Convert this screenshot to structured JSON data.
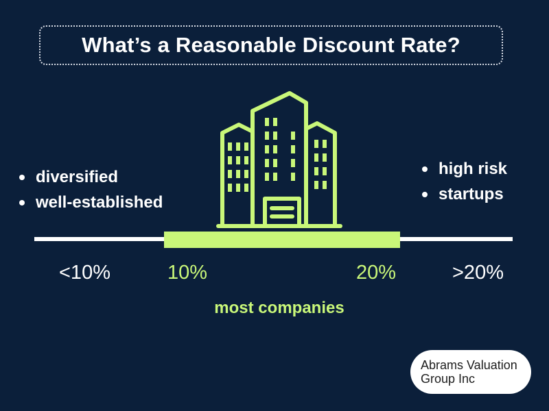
{
  "title": "What’s a Reasonable Discount Rate?",
  "left_bullets": [
    "diversified",
    "well-established"
  ],
  "right_bullets": [
    "high risk",
    "startups"
  ],
  "scale": {
    "labels": [
      {
        "text": "<10%",
        "color": "#ffffff"
      },
      {
        "text": "10%",
        "color": "#c9f779"
      },
      {
        "text": "20%",
        "color": "#c9f779"
      },
      {
        "text": ">20%",
        "color": "#ffffff"
      }
    ],
    "highlight_range": [
      10,
      20
    ],
    "highlight_label": "most companies"
  },
  "illustration_icon": "office-building-icon",
  "logo": {
    "line1": "Abrams Valuation",
    "line2": "Group Inc"
  },
  "colors": {
    "background": "#0b1f3a",
    "accent": "#c9f779",
    "text": "#ffffff",
    "logo_bg": "#ffffff"
  }
}
